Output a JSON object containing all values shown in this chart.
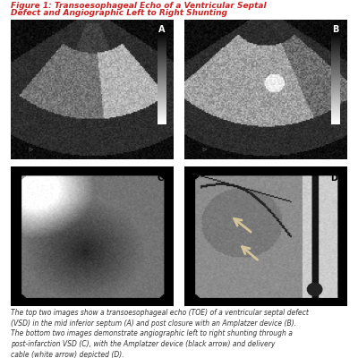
{
  "title_line1": "Figure 1: Transoesophageal Echo of a Ventricular Septal",
  "title_line2": "Defect and Angiographic Left to Right Shunting",
  "title_color": "#cc2222",
  "title_fontsize": 6.5,
  "background_color": "#ffffff",
  "caption": "The top two images show a transoesophageal echo (TOE) of a ventricular septal defect\n(VSD) in the mid inferior septum (A) and post closure with an Amplatzer device (B).\nThe bottom two images demonstrate angiographic left to right shunting through a\npost-infarction VSD (C), with the Amplatzer device (black arrow) and delivery\ncable (white arrow) depicted (D).",
  "caption_fontsize": 5.5,
  "divider_color": "#aaaaaa",
  "arrow_color": "#d4c49a",
  "panel_outer_bg": "#111111",
  "panel_A_bg": "#333333",
  "panel_B_bg": "#222222"
}
